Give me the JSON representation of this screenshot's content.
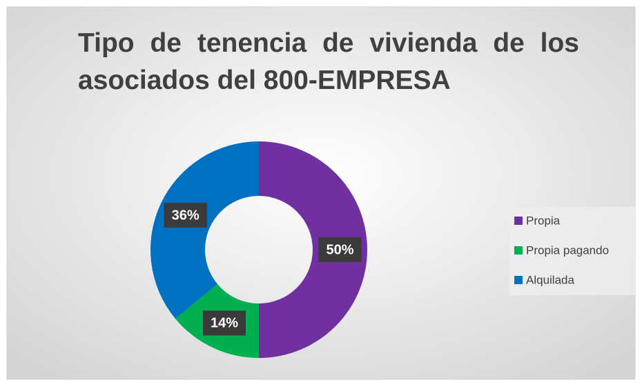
{
  "chart_data": {
    "type": "donut",
    "title": "Tipo de tenencia de vivienda de los asociados del 800-EMPRESA",
    "categories": [
      "Propia",
      "Propia pagando",
      "Alquilada"
    ],
    "values": [
      50,
      14,
      36
    ],
    "value_labels": [
      "50%",
      "14%",
      "36%"
    ],
    "colors": [
      "#7030a0",
      "#00b050",
      "#0070c0"
    ],
    "legend": "right"
  }
}
